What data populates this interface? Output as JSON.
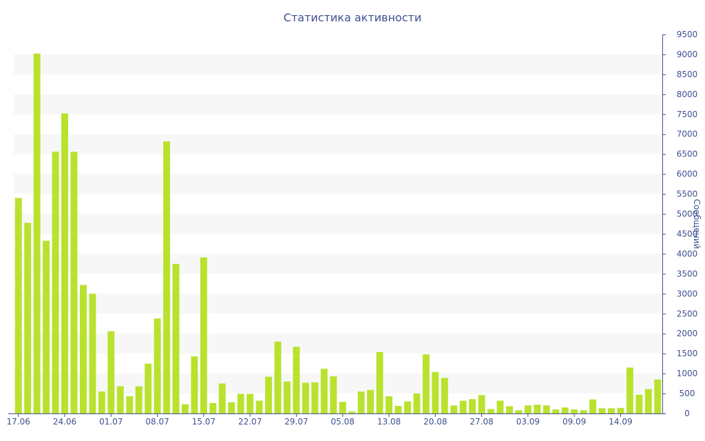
{
  "chart_data": {
    "type": "bar",
    "title": "Статистика активности",
    "xlabel": "",
    "ylabel": "Сообщений",
    "ylim": [
      0,
      9500
    ],
    "y_ticks": [
      0,
      500,
      1000,
      1500,
      2000,
      2500,
      3000,
      3500,
      4000,
      4500,
      5000,
      5500,
      6000,
      6500,
      7000,
      7500,
      8000,
      8500,
      9000,
      9500
    ],
    "x_tick_labels": [
      {
        "index": 0,
        "label": "17.06"
      },
      {
        "index": 5,
        "label": "24.06"
      },
      {
        "index": 10,
        "label": "01.07"
      },
      {
        "index": 15,
        "label": "08.07"
      },
      {
        "index": 20,
        "label": "15.07"
      },
      {
        "index": 25,
        "label": "22.07"
      },
      {
        "index": 30,
        "label": "29.07"
      },
      {
        "index": 35,
        "label": "05.08"
      },
      {
        "index": 40,
        "label": "13.08"
      },
      {
        "index": 45,
        "label": "20.08"
      },
      {
        "index": 50,
        "label": "27.08"
      },
      {
        "index": 55,
        "label": "03.09"
      },
      {
        "index": 60,
        "label": "09.09"
      },
      {
        "index": 65,
        "label": "14.09"
      }
    ],
    "y_axis_position": "right",
    "grid": "alternating horizontal bands",
    "bar_color": "#b9e22f",
    "values": [
      5400,
      4780,
      9020,
      4330,
      6560,
      7520,
      6560,
      3220,
      3000,
      550,
      2060,
      680,
      430,
      680,
      1250,
      2380,
      6820,
      3750,
      230,
      1430,
      3910,
      260,
      750,
      280,
      490,
      490,
      320,
      920,
      1800,
      800,
      1670,
      770,
      780,
      1120,
      930,
      290,
      50,
      550,
      590,
      1540,
      430,
      190,
      300,
      500,
      1480,
      1040,
      890,
      200,
      320,
      360,
      460,
      110,
      320,
      180,
      80,
      200,
      220,
      200,
      100,
      150,
      100,
      80,
      350,
      130,
      130,
      140,
      1150,
      470,
      610,
      850
    ]
  }
}
